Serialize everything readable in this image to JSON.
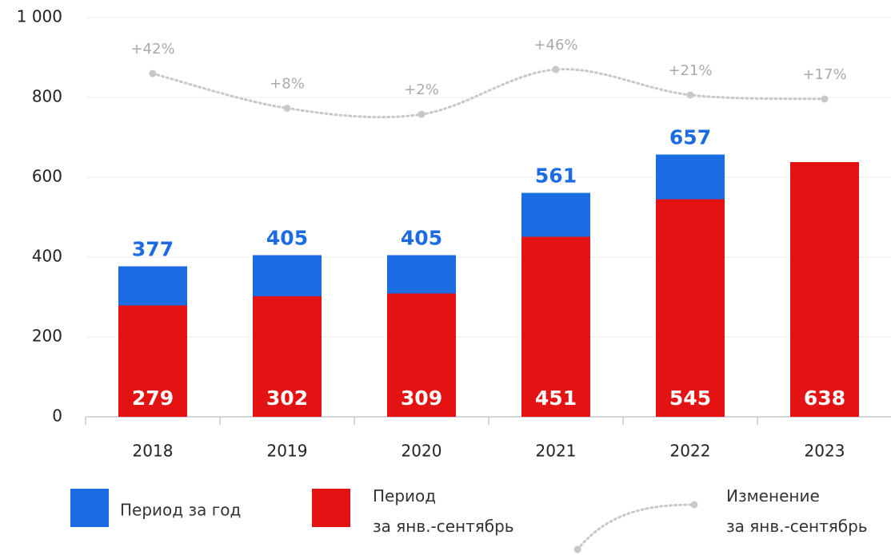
{
  "chart_data": {
    "type": "bar",
    "categories": [
      "2018",
      "2019",
      "2020",
      "2021",
      "2022",
      "2023"
    ],
    "series": [
      {
        "name": "Период за год",
        "color": "#1b6be3",
        "values": [
          377,
          405,
          405,
          561,
          657,
          null
        ]
      },
      {
        "name": "Период\nза янв.-сентябрь",
        "color": "#e31313",
        "values": [
          279,
          302,
          309,
          451,
          545,
          638
        ]
      },
      {
        "name": "Изменение\nза янв.-сентябрь",
        "color": "#c8c8c8",
        "type": "line",
        "axis": "y2",
        "values": [
          42,
          8,
          2,
          46,
          21,
          17
        ],
        "value_labels": [
          "+42%",
          "+8%",
          "+2%",
          "+46%",
          "+21%",
          "+17%"
        ]
      }
    ],
    "ylim": [
      0,
      1000
    ],
    "yticks": [
      0,
      200,
      400,
      600,
      800,
      {
        "value": 1000,
        "label": "1 000"
      }
    ],
    "y2lim": [
      -295,
      97
    ],
    "grid": true
  }
}
